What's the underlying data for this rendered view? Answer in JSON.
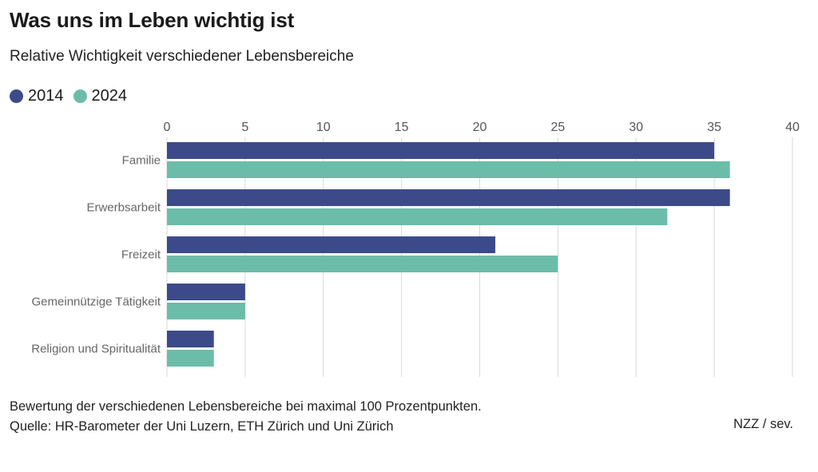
{
  "header": {
    "title": "Was uns im Leben wichtig ist",
    "subtitle": "Relative Wichtigkeit verschiedener Lebensbereiche"
  },
  "legend": [
    {
      "label": "2014",
      "color": "#3d4a8a"
    },
    {
      "label": "2024",
      "color": "#6cbcaa"
    }
  ],
  "chart_data": {
    "type": "bar",
    "orientation": "horizontal",
    "categories": [
      "Familie",
      "Erwerbsarbeit",
      "Freizeit",
      "Gemeinnützige Tätigkeit",
      "Religion und Spiritualität"
    ],
    "series": [
      {
        "name": "2014",
        "color": "#3d4a8a",
        "values": [
          35,
          36,
          21,
          5,
          3
        ]
      },
      {
        "name": "2024",
        "color": "#6cbcaa",
        "values": [
          36,
          32,
          25,
          5,
          3
        ]
      }
    ],
    "xlim": [
      0,
      40
    ],
    "xticks": [
      0,
      5,
      10,
      15,
      20,
      25,
      30,
      35,
      40
    ],
    "xtick_labels": [
      "0",
      "5",
      "10",
      "15",
      "20",
      "25",
      "30",
      "35",
      "40"
    ],
    "grid": true,
    "legend_position": "top-left"
  },
  "footer": {
    "note": "Bewertung der verschiedenen Lebensbereiche bei maximal 100 Prozentpunkten.",
    "source": "Quelle: HR-Barometer der Uni Luzern, ETH Zürich und Uni Zürich",
    "credit": "NZZ / sev."
  }
}
